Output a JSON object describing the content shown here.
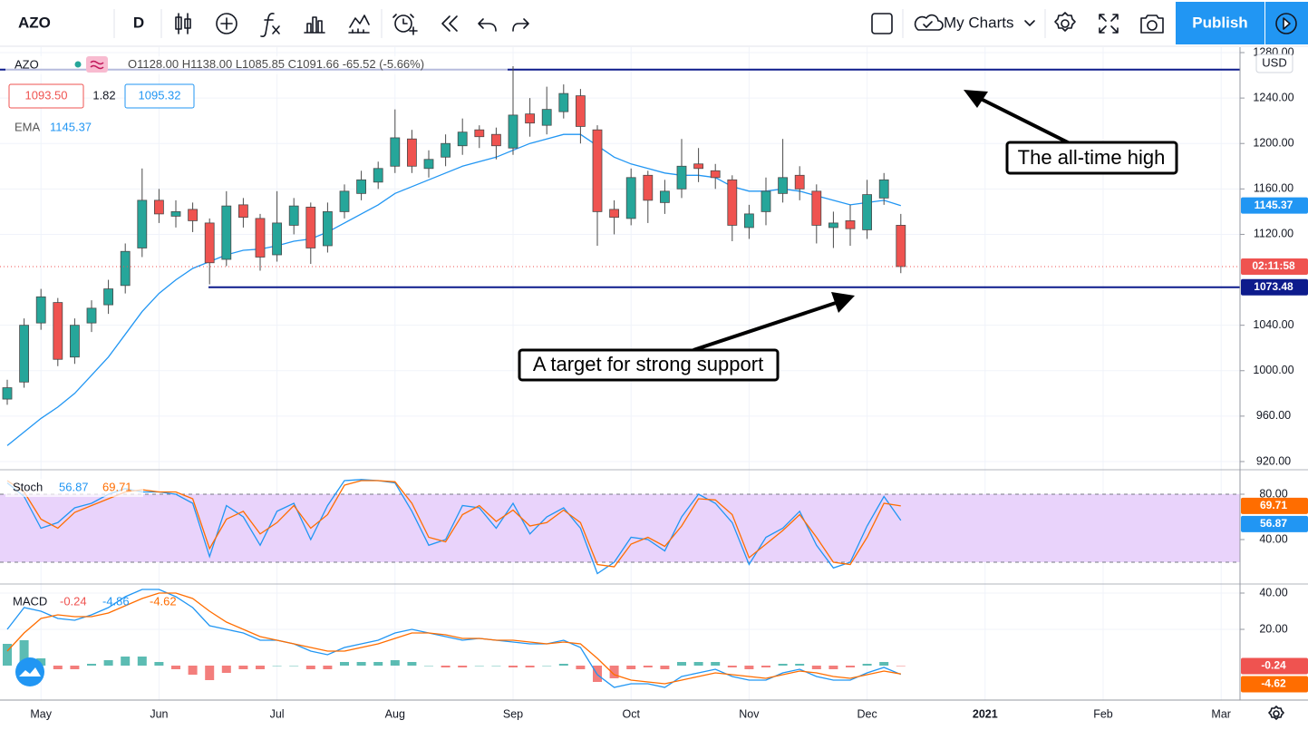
{
  "toolbar": {
    "symbol": "AZO",
    "interval": "D",
    "layout": "My Charts",
    "publish": "Publish"
  },
  "chart_data": [
    {
      "type": "candlestick",
      "symbol": "AZO",
      "legend": [
        {
          "value": 1128,
          "label": "O1128.00"
        },
        {
          "value": 1138,
          "label": "H1138.00"
        },
        {
          "value": 1085.85,
          "label": "L1085.85"
        },
        {
          "value": 1091.66,
          "label": "C1091.66"
        },
        -65.52,
        {
          "value": -5.66,
          "label": "(-5.66%)"
        }
      ],
      "bid": {
        "value": 1093.5,
        "label": "1093.50"
      },
      "spread": 1.82,
      "ask": 1095.32,
      "currency": "USD",
      "countdown": "02:11:58",
      "up_color": "#26a69a",
      "down_color": "#ef5350",
      "wick_color": "#4a4a4a",
      "open": [
        975,
        990,
        1042,
        1060,
        1012,
        1042,
        1058,
        1075,
        1108,
        1150,
        1136,
        1142,
        1130,
        1098,
        1146,
        1134,
        1102,
        1128,
        1144,
        1110,
        1140,
        1156,
        1166,
        1180,
        1204,
        1178,
        1188,
        1198,
        1212,
        1208,
        1196,
        1226,
        1216,
        1228,
        1242,
        1212,
        1142,
        1134,
        1172,
        1148,
        1160,
        1182,
        1176,
        1168,
        1126,
        1140,
        1156,
        1172,
        1158,
        1126,
        1132,
        1124,
        1152,
        1128,
        null,
        null,
        null,
        null,
        null,
        null,
        null,
        null,
        null,
        null,
        null,
        null,
        null,
        null,
        null,
        null,
        null,
        null,
        null,
        null
      ],
      "high": [
        992,
        1046,
        1072,
        1064,
        1046,
        1062,
        1080,
        1112,
        1178,
        1160,
        1150,
        1148,
        1134,
        1158,
        1152,
        1138,
        1158,
        1152,
        1148,
        1148,
        1164,
        1176,
        1184,
        1230,
        1212,
        1194,
        1208,
        1222,
        1216,
        1214,
        1268,
        1240,
        1250,
        1252,
        1248,
        1216,
        1150,
        1178,
        1176,
        1168,
        1204,
        1196,
        1182,
        1172,
        1146,
        1170,
        1204,
        1180,
        1164,
        1140,
        1146,
        1168,
        1174,
        1138,
        null,
        null,
        null,
        null,
        null,
        null,
        null,
        null,
        null,
        null,
        null,
        null,
        null,
        null,
        null,
        null,
        null,
        null,
        null,
        null
      ],
      "low": [
        970,
        985,
        1036,
        1004,
        1006,
        1034,
        1050,
        1068,
        1100,
        1130,
        1126,
        1122,
        1076,
        1092,
        1126,
        1088,
        1096,
        1120,
        1094,
        1104,
        1134,
        1150,
        1160,
        1174,
        1174,
        1170,
        1180,
        1190,
        1196,
        1186,
        1190,
        1206,
        1208,
        1222,
        1200,
        1110,
        1120,
        1128,
        1130,
        1138,
        1152,
        1166,
        1160,
        1114,
        1116,
        1128,
        1148,
        1150,
        1112,
        1108,
        1110,
        1116,
        1146,
        1085.85,
        null,
        null,
        null,
        null,
        null,
        null,
        null,
        null,
        null,
        null,
        null,
        null,
        null,
        null,
        null,
        null,
        null,
        null,
        null,
        null
      ],
      "close": [
        985,
        1040,
        1065,
        1010,
        1040,
        1055,
        1072,
        1105,
        1150,
        1138,
        1140,
        1132,
        1095,
        1145,
        1135,
        1100,
        1130,
        1145,
        1108,
        1140,
        1158,
        1168,
        1178,
        1205,
        1180,
        1186,
        1200,
        1210,
        1206,
        1198,
        1225,
        1218,
        1230,
        1244,
        1215,
        1140,
        1135,
        1170,
        1150,
        1158,
        1180,
        1178,
        1170,
        1128,
        1138,
        1158,
        1170,
        1160,
        1128,
        1130,
        1125,
        1155,
        1168,
        1091.66,
        null,
        null,
        null,
        null,
        null,
        null,
        null,
        null,
        null,
        null,
        null,
        null,
        null,
        null,
        null,
        null,
        null,
        null,
        null,
        null
      ],
      "ema": {
        "name": "EMA",
        "color": "#2196f3",
        "values": [
          934,
          946,
          958,
          968,
          980,
          996,
          1012,
          1032,
          1052,
          1068,
          1080,
          1090,
          1096,
          1102,
          1106,
          1107,
          1110,
          1114,
          1116,
          1122,
          1130,
          1138,
          1146,
          1156,
          1162,
          1168,
          1174,
          1180,
          1184,
          1188,
          1194,
          1200,
          1204,
          1208,
          1208,
          1198,
          1188,
          1182,
          1178,
          1174,
          1172,
          1172,
          1170,
          1162,
          1158,
          1158,
          1160,
          1158,
          1154,
          1150,
          1146,
          1148,
          1150,
          1145.37,
          null,
          null,
          null,
          null,
          null,
          null,
          null,
          null,
          null,
          null,
          null,
          null,
          null,
          null,
          null,
          null,
          null,
          null,
          null,
          null
        ]
      },
      "hlines": [
        {
          "value": 1265,
          "color": "#0d1b8c"
        },
        {
          "value": 1073.48,
          "color": "#0d1b8c"
        }
      ],
      "annotations": [
        "The all-time high",
        "A target for strong support"
      ],
      "ylim": [
        913.6,
        1284.8
      ],
      "yticks": [
        {
          "value": 920,
          "label": "920.00"
        },
        {
          "value": 960,
          "label": "960.00"
        },
        {
          "value": 1000,
          "label": "1000.00"
        },
        {
          "value": 1040,
          "label": "1040.00"
        },
        {
          "value": 1120,
          "label": "1120.00"
        },
        {
          "value": 1160,
          "label": "1160.00"
        },
        {
          "value": 1200,
          "label": "1200.00"
        },
        {
          "value": 1240,
          "label": "1240.00"
        },
        {
          "value": 1280,
          "label": "1280.00"
        }
      ],
      "grid": true
    },
    {
      "type": "line",
      "name": "Stoch",
      "band": [
        20,
        80
      ],
      "band_color": "#e9d3fb",
      "series": [
        {
          "color": "#2196f3",
          "values": [
            90,
            78,
            50,
            55,
            68,
            72,
            80,
            85,
            82,
            82,
            80,
            72,
            25,
            70,
            60,
            35,
            65,
            72,
            40,
            70,
            92,
            93,
            92,
            90,
            65,
            35,
            40,
            70,
            68,
            50,
            72,
            45,
            60,
            68,
            50,
            10,
            20,
            42,
            40,
            30,
            60,
            80,
            72,
            55,
            18,
            42,
            50,
            65,
            35,
            15,
            20,
            52,
            78,
            56.87,
            null,
            null,
            null,
            null,
            null,
            null,
            null,
            null,
            null,
            null,
            null,
            null,
            null,
            null,
            null,
            null,
            null,
            null,
            null,
            null
          ]
        },
        {
          "color": "#ff6d00",
          "values": [
            92,
            82,
            58,
            50,
            64,
            70,
            76,
            82,
            84,
            82,
            82,
            76,
            32,
            58,
            65,
            45,
            55,
            70,
            50,
            62,
            88,
            92,
            92,
            91,
            72,
            42,
            38,
            62,
            70,
            56,
            66,
            52,
            55,
            66,
            55,
            18,
            16,
            36,
            42,
            34,
            52,
            76,
            75,
            62,
            24,
            36,
            48,
            62,
            42,
            20,
            18,
            42,
            72,
            69.71,
            null,
            null,
            null,
            null,
            null,
            null,
            null,
            null,
            null,
            null,
            null,
            null,
            null,
            null,
            null,
            null,
            null,
            null,
            null,
            null
          ]
        }
      ],
      "ylim": [
        1.6,
        100.8
      ],
      "yticks": [
        {
          "value": 40,
          "label": "40.00"
        },
        {
          "value": 80,
          "label": "80.00"
        }
      ],
      "grid": true
    },
    {
      "type": "macd",
      "name": "MACD",
      "categories": [
        null,
        null,
        "May",
        null,
        null,
        null,
        null,
        null,
        null,
        "Jun",
        null,
        null,
        null,
        null,
        null,
        null,
        "Jul",
        null,
        null,
        null,
        null,
        null,
        null,
        "Aug",
        null,
        null,
        null,
        null,
        null,
        null,
        "Sep",
        null,
        null,
        null,
        null,
        null,
        null,
        "Oct",
        null,
        null,
        null,
        null,
        null,
        null,
        "Nov",
        null,
        null,
        null,
        null,
        null,
        null,
        "Dec",
        null,
        null,
        null,
        null,
        null,
        null,
        "2021",
        null,
        null,
        null,
        null,
        null,
        null,
        "Feb",
        null,
        null,
        null,
        null,
        null,
        null,
        "Mar",
        null
      ],
      "histogram": {
        "up_color": "#26a69a",
        "down_color": "#ef5350",
        "values": [
          12,
          14,
          4,
          -2,
          -2,
          1,
          3,
          5,
          5,
          2,
          -2,
          -5,
          -8,
          -4,
          -2,
          -2,
          0,
          0,
          -2,
          -2,
          2,
          2,
          2,
          3,
          2,
          0,
          -1,
          -1,
          0,
          0,
          -1,
          -1,
          0,
          1,
          -2,
          -9,
          -7,
          -2,
          -1,
          -2,
          2,
          2,
          2,
          -1,
          -2,
          -1,
          1,
          1,
          -2,
          -2,
          -1,
          1,
          2,
          -0.24,
          null,
          null,
          null,
          null,
          null,
          null,
          null,
          null,
          null,
          null,
          null,
          null,
          null,
          null,
          null,
          null,
          null,
          null,
          null,
          null
        ]
      },
      "series": [
        {
          "color": "#2196f3",
          "values": [
            20,
            32,
            30,
            26,
            25,
            28,
            32,
            38,
            42,
            42,
            38,
            32,
            22,
            20,
            18,
            14,
            14,
            12,
            8,
            6,
            10,
            12,
            14,
            18,
            20,
            18,
            16,
            14,
            15,
            14,
            13,
            12,
            12,
            14,
            10,
            -5,
            -12,
            -10,
            -10,
            -12,
            -6,
            -4,
            -2,
            -6,
            -8,
            -8,
            -4,
            -2,
            -6,
            -8,
            -8,
            -4,
            -1,
            -4.86,
            null,
            null,
            null,
            null,
            null,
            null,
            null,
            null,
            null,
            null,
            null,
            null,
            null,
            null,
            null,
            null,
            null,
            null,
            null,
            null
          ]
        },
        {
          "color": "#ff6d00",
          "values": [
            8,
            18,
            26,
            28,
            27,
            27,
            29,
            33,
            37,
            40,
            40,
            37,
            30,
            24,
            20,
            16,
            14,
            12,
            10,
            8,
            8,
            10,
            12,
            15,
            18,
            18,
            17,
            15,
            15,
            14,
            14,
            13,
            12,
            13,
            12,
            4,
            -5,
            -8,
            -9,
            -10,
            -8,
            -6,
            -4,
            -5,
            -6,
            -7,
            -5,
            -3,
            -4,
            -6,
            -7,
            -5,
            -3,
            -4.62,
            null,
            null,
            null,
            null,
            null,
            null,
            null,
            null,
            null,
            null,
            null,
            null,
            null,
            null,
            null,
            null,
            null,
            null,
            null,
            null
          ]
        }
      ],
      "ylim": [
        -19,
        44.5
      ],
      "yticks": [
        {
          "value": 20,
          "label": "20.00"
        },
        {
          "value": 40,
          "label": "40.00"
        }
      ],
      "grid": true
    }
  ]
}
